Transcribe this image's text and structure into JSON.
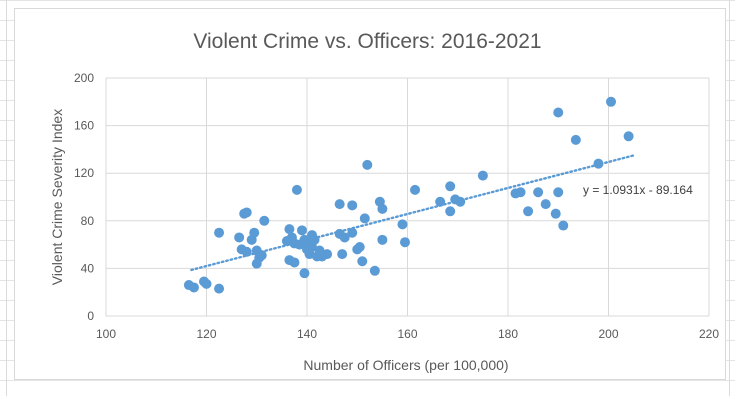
{
  "chart_data": {
    "type": "scatter",
    "title": "Violent Crime vs. Officers: 2016-2021",
    "xlabel": "Number of Officers (per 100,000)",
    "ylabel": "Violent Crime Severity Index",
    "xlim": [
      100,
      220
    ],
    "ylim": [
      0,
      200
    ],
    "x_ticks": [
      "100",
      "120",
      "140",
      "160",
      "180",
      "200",
      "220"
    ],
    "y_ticks": [
      "0",
      "40",
      "80",
      "120",
      "160",
      "200"
    ],
    "grid": true,
    "point_color": "#5b9bd5",
    "trendline": {
      "label": "y = 1.0931x - 89.164",
      "slope": 1.0931,
      "intercept": -89.164,
      "x_range": [
        117,
        205
      ],
      "style": "dotted",
      "color": "#5b9bd5"
    },
    "points": [
      [
        116.5,
        26
      ],
      [
        117.5,
        24
      ],
      [
        119.5,
        29
      ],
      [
        120,
        27
      ],
      [
        122.5,
        23
      ],
      [
        122.5,
        70
      ],
      [
        126.5,
        66
      ],
      [
        127,
        56
      ],
      [
        127.5,
        86
      ],
      [
        128,
        87
      ],
      [
        128,
        54
      ],
      [
        129,
        64
      ],
      [
        129.5,
        70
      ],
      [
        130,
        55
      ],
      [
        130,
        44
      ],
      [
        130.5,
        49
      ],
      [
        131,
        51
      ],
      [
        131.5,
        80
      ],
      [
        136,
        63
      ],
      [
        136.5,
        73
      ],
      [
        136.5,
        47
      ],
      [
        137,
        66
      ],
      [
        137.5,
        45
      ],
      [
        137.5,
        61
      ],
      [
        138,
        106
      ],
      [
        138.5,
        60
      ],
      [
        139,
        72
      ],
      [
        139.5,
        36
      ],
      [
        139.5,
        64
      ],
      [
        140,
        62
      ],
      [
        140,
        56
      ],
      [
        140.5,
        52
      ],
      [
        141,
        58
      ],
      [
        141,
        68
      ],
      [
        141.5,
        64
      ],
      [
        142,
        50
      ],
      [
        142.5,
        55
      ],
      [
        143,
        50
      ],
      [
        144,
        52
      ],
      [
        146.5,
        69
      ],
      [
        146.5,
        94
      ],
      [
        147,
        52
      ],
      [
        147.5,
        66
      ],
      [
        149,
        93
      ],
      [
        149,
        70
      ],
      [
        150,
        56
      ],
      [
        150.5,
        58
      ],
      [
        151,
        46
      ],
      [
        151.5,
        82
      ],
      [
        152,
        127
      ],
      [
        153.5,
        38
      ],
      [
        154.5,
        96
      ],
      [
        155,
        90
      ],
      [
        155,
        64
      ],
      [
        159,
        77
      ],
      [
        159.5,
        62
      ],
      [
        161.5,
        106
      ],
      [
        166.5,
        96
      ],
      [
        168.5,
        88
      ],
      [
        168.5,
        109
      ],
      [
        169.5,
        98
      ],
      [
        170.5,
        96
      ],
      [
        175,
        118
      ],
      [
        181.5,
        103
      ],
      [
        182.5,
        104
      ],
      [
        184,
        88
      ],
      [
        186,
        104
      ],
      [
        187.5,
        94
      ],
      [
        189.5,
        86
      ],
      [
        190,
        104
      ],
      [
        190,
        171
      ],
      [
        191,
        76
      ],
      [
        193.5,
        148
      ],
      [
        198,
        128
      ],
      [
        200.5,
        180
      ],
      [
        204,
        151
      ]
    ]
  }
}
